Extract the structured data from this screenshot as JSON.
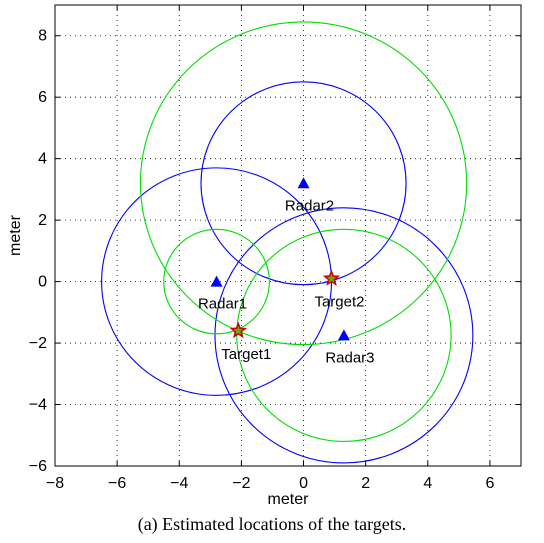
{
  "chart_data": {
    "type": "scatter",
    "title": "",
    "xlabel": "meter",
    "ylabel": "meter",
    "xlim": [
      -8,
      7
    ],
    "ylim": [
      -6,
      9
    ],
    "xticks": [
      -8,
      -6,
      -4,
      -2,
      0,
      2,
      4,
      6
    ],
    "yticks": [
      -6,
      -4,
      -2,
      0,
      2,
      4,
      6,
      8
    ],
    "grid": true,
    "radars": [
      {
        "label": "Radar1",
        "x": -2.8,
        "y": 0.0
      },
      {
        "label": "Radar2",
        "x": 0.0,
        "y": 3.2
      },
      {
        "label": "Radar3",
        "x": 1.3,
        "y": -1.75
      }
    ],
    "targets": [
      {
        "label": "Target1",
        "x": -2.1,
        "y": -1.6
      },
      {
        "label": "Target2",
        "x": 0.9,
        "y": 0.1
      }
    ],
    "circles": [
      {
        "color": "#0000ff",
        "cx": -2.8,
        "cy": 0.0,
        "r": 3.7
      },
      {
        "color": "#0000ff",
        "cx": 0.0,
        "cy": 3.2,
        "r": 3.3
      },
      {
        "color": "#0000ff",
        "cx": 1.3,
        "cy": -1.75,
        "r": 4.15
      },
      {
        "color": "#00dd00",
        "cx": -2.8,
        "cy": 0.0,
        "r": 1.7
      },
      {
        "color": "#00dd00",
        "cx": 0.0,
        "cy": 3.2,
        "r": 5.25
      },
      {
        "color": "#00dd00",
        "cx": 1.3,
        "cy": -1.75,
        "r": 3.45
      }
    ],
    "colors": {
      "radar_marker": "#0000ff",
      "target_star_outer": "#cc0000",
      "target_star_inner": "#66aa00"
    }
  },
  "caption": "(a) Estimated locations of the targets."
}
